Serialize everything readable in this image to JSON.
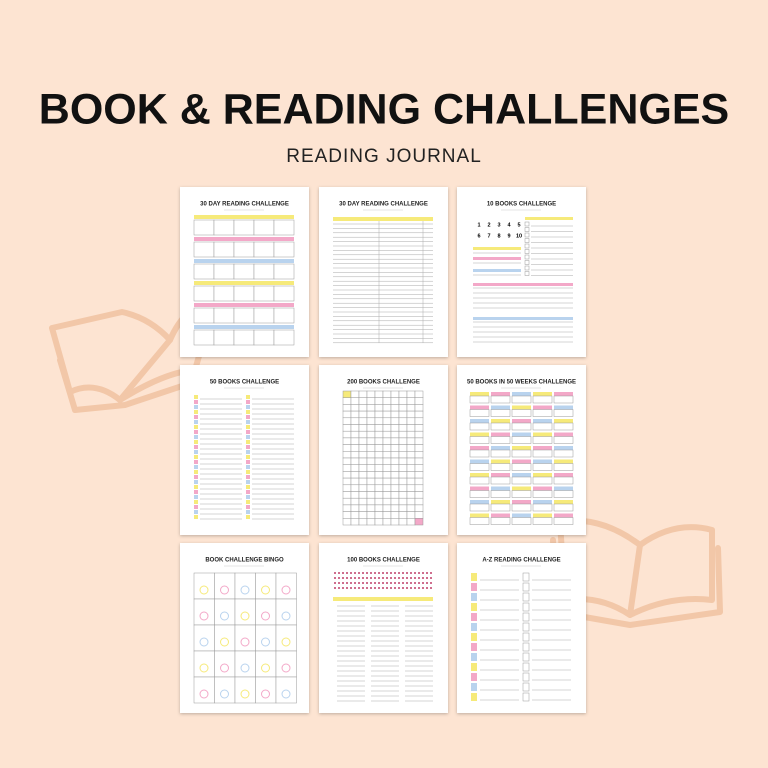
{
  "header": {
    "title": "BOOK & READING CHALLENGES",
    "subtitle": "READING JOURNAL"
  },
  "pages": [
    {
      "title": "30 DAY READING CHALLENGE"
    },
    {
      "title": "30 DAY READING CHALLENGE"
    },
    {
      "title": "10 BOOKS CHALLENGE",
      "numbers": [
        1,
        2,
        3,
        4,
        5,
        6,
        7,
        8,
        9,
        10
      ]
    },
    {
      "title": "50 BOOKS CHALLENGE"
    },
    {
      "title": "200 BOOKS CHALLENGE"
    },
    {
      "title": "50 BOOKS IN 50 WEEKS CHALLENGE"
    },
    {
      "title": "BOOK CHALLENGE BINGO"
    },
    {
      "title": "100 BOOKS CHALLENGE"
    },
    {
      "title": "A-Z READING CHALLENGE"
    }
  ]
}
